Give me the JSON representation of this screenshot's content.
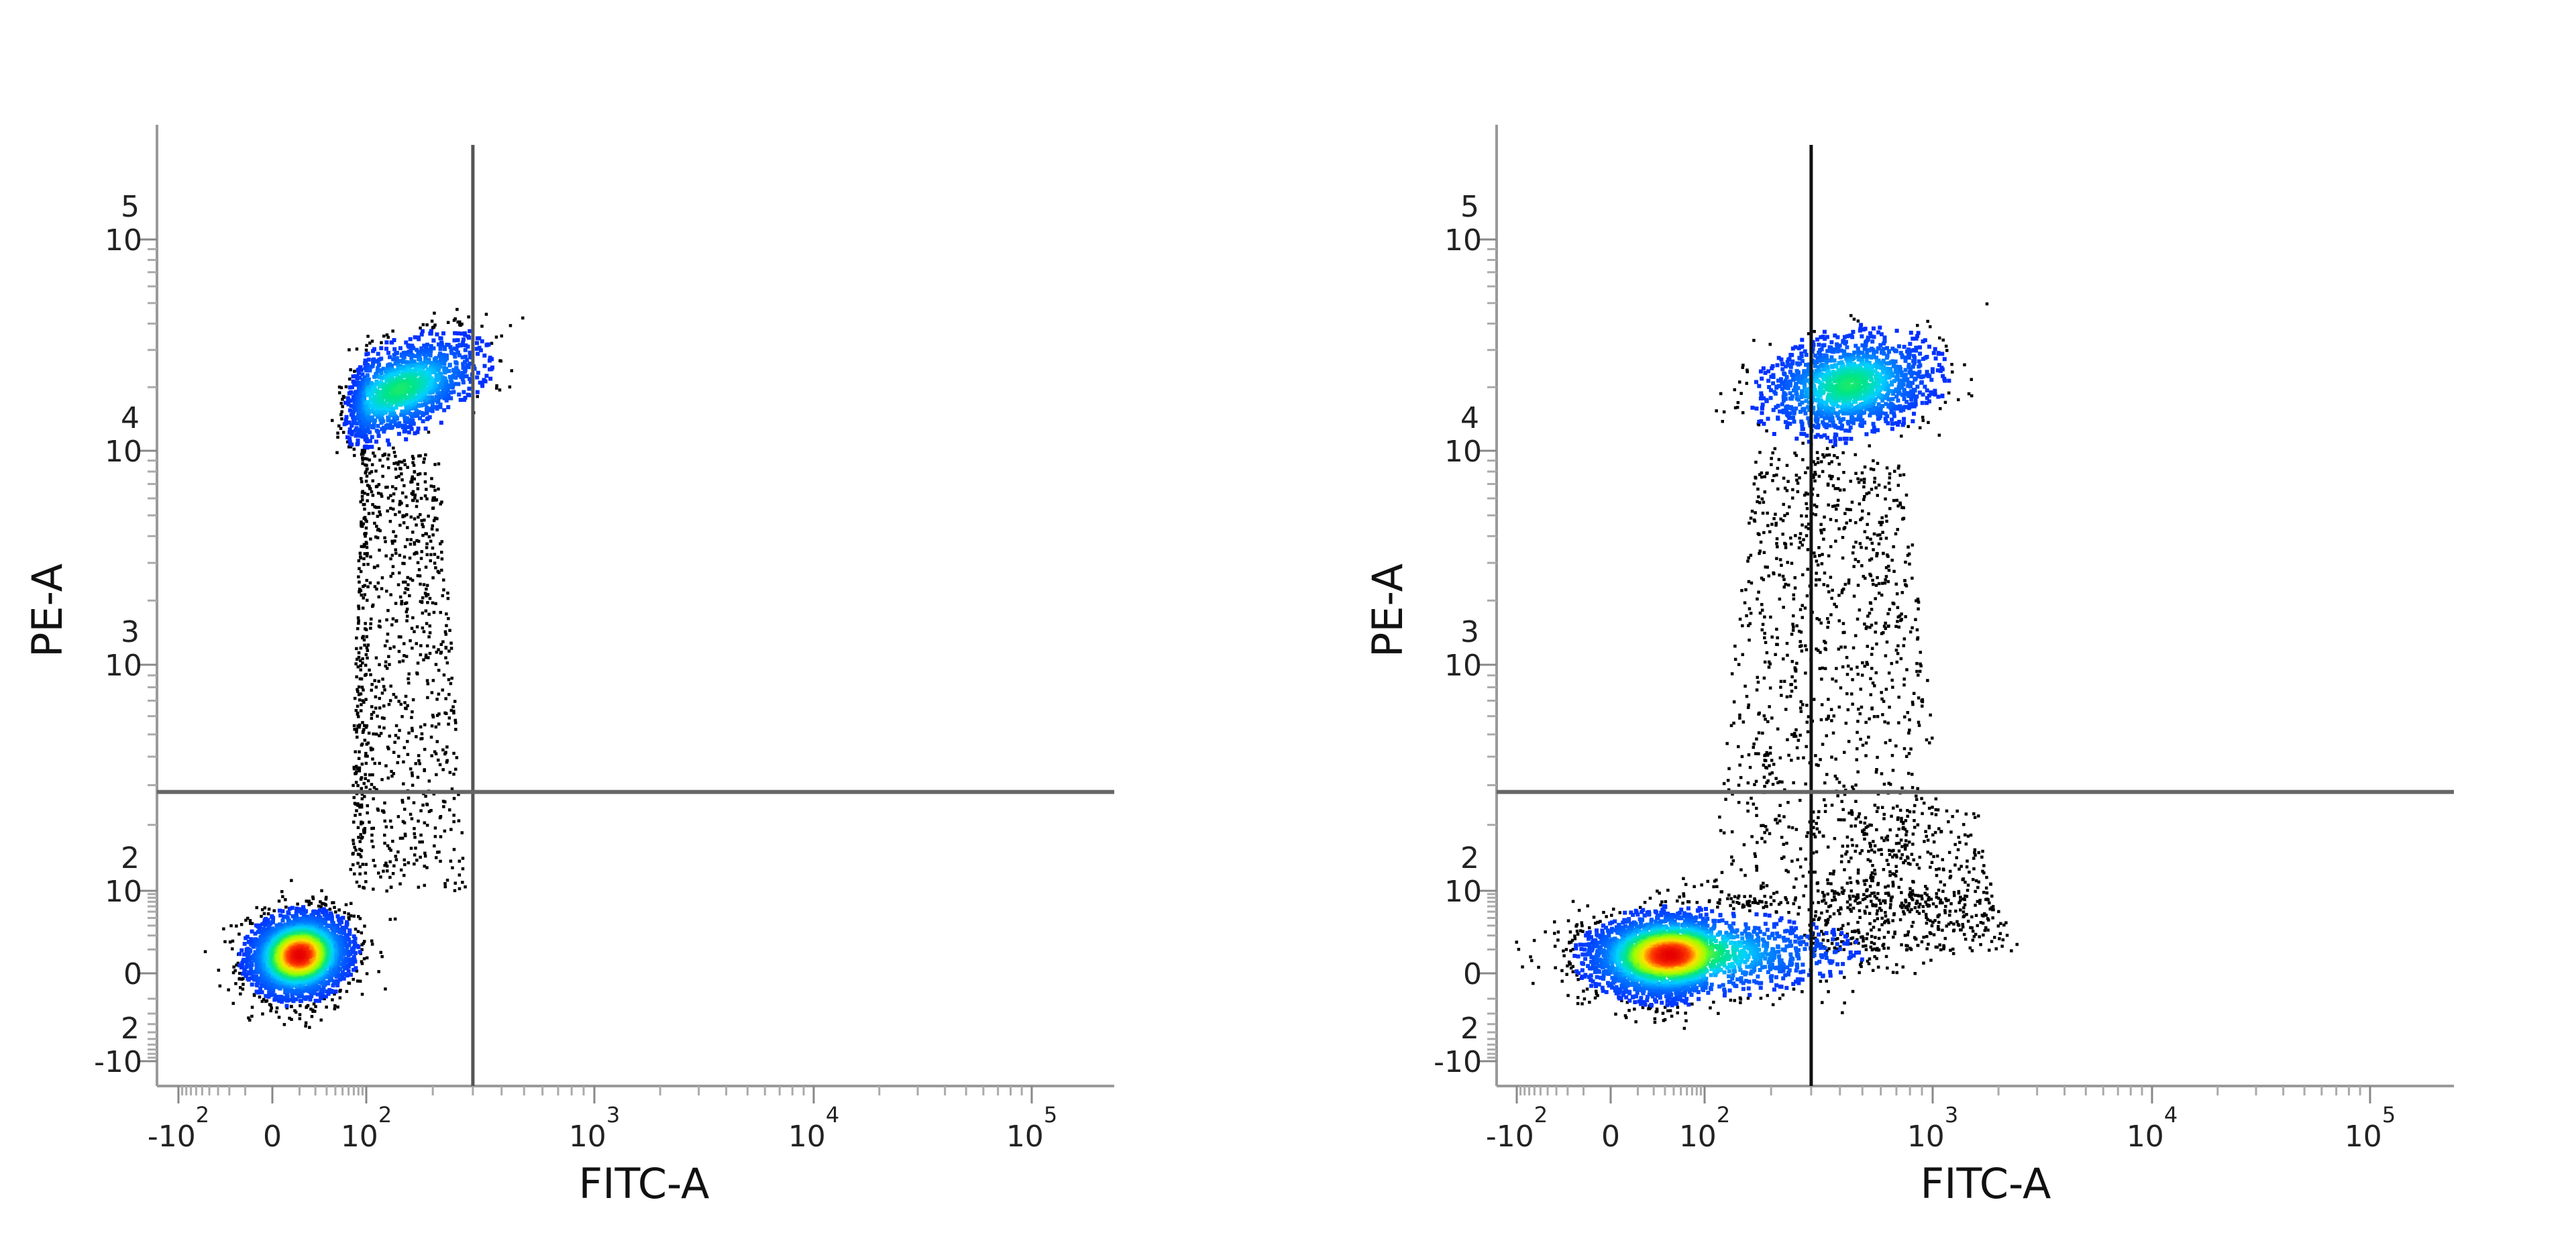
{
  "chart_data": [
    {
      "type": "scatter",
      "plot_style": "density dot plot",
      "xlabel": "FITC-A",
      "ylabel": "PE-A",
      "x_scale": "biexponential",
      "y_scale": "biexponential",
      "xlim": [
        -150,
        200000
      ],
      "ylim": [
        -150,
        200000
      ],
      "x_ticks": [
        {
          "value": -100,
          "base": "-10",
          "exp": "2"
        },
        {
          "value": 0,
          "base": "0",
          "exp": ""
        },
        {
          "value": 100,
          "base": "10",
          "exp": "2"
        },
        {
          "value": 1000,
          "base": "10",
          "exp": "3"
        },
        {
          "value": 10000,
          "base": "10",
          "exp": "4"
        },
        {
          "value": 100000,
          "base": "10",
          "exp": "5"
        }
      ],
      "y_ticks": [
        {
          "value": -100,
          "base": "-10",
          "exp": "2"
        },
        {
          "value": 0,
          "base": "0",
          "exp": ""
        },
        {
          "value": 100,
          "base": "10",
          "exp": "2"
        },
        {
          "value": 1000,
          "base": "10",
          "exp": "3"
        },
        {
          "value": 10000,
          "base": "10",
          "exp": "4"
        },
        {
          "value": 100000,
          "base": "10",
          "exp": "5"
        }
      ],
      "quadrant_gate": {
        "x": 300,
        "y": 280
      },
      "populations": [
        {
          "type": "gaussian",
          "center": [
            9,
            8
          ],
          "sd_decades": [
            0.28,
            0.26
          ],
          "corr": 0.1,
          "events": 3000,
          "peak": 1.0
        },
        {
          "type": "gaussian",
          "center": [
            140,
            20000
          ],
          "sd_decades": [
            0.17,
            0.12
          ],
          "corr": 0.5,
          "events": 1500,
          "peak": 0.6
        },
        {
          "type": "uniform",
          "x_range": [
            60,
            280
          ],
          "y_range": [
            100,
            10000
          ],
          "events": 900
        }
      ],
      "colors": {
        "sparse": "#000000",
        "low": "#0020ff",
        "mid": "#00d0ff",
        "high": "#ffe000",
        "peak": "#ff0000",
        "gate": "#555555"
      }
    },
    {
      "type": "scatter",
      "plot_style": "density dot plot",
      "xlabel": "FITC-A",
      "ylabel": "PE-A",
      "x_scale": "biexponential",
      "y_scale": "biexponential",
      "xlim": [
        -150,
        200000
      ],
      "ylim": [
        -150,
        200000
      ],
      "x_ticks": [
        {
          "value": -100,
          "base": "-10",
          "exp": "2"
        },
        {
          "value": 0,
          "base": "0",
          "exp": ""
        },
        {
          "value": 100,
          "base": "10",
          "exp": "2"
        },
        {
          "value": 1000,
          "base": "10",
          "exp": "3"
        },
        {
          "value": 10000,
          "base": "10",
          "exp": "4"
        },
        {
          "value": 100000,
          "base": "10",
          "exp": "5"
        }
      ],
      "y_ticks": [
        {
          "value": -100,
          "base": "-10",
          "exp": "2"
        },
        {
          "value": 0,
          "base": "0",
          "exp": ""
        },
        {
          "value": 100,
          "base": "10",
          "exp": "2"
        },
        {
          "value": 1000,
          "base": "10",
          "exp": "3"
        },
        {
          "value": 10000,
          "base": "10",
          "exp": "4"
        },
        {
          "value": 100000,
          "base": "10",
          "exp": "5"
        }
      ],
      "quadrant_gate": {
        "x": 300,
        "y": 280
      },
      "populations": [
        {
          "type": "gaussian",
          "center": [
            33,
            8
          ],
          "sd_decades": [
            0.45,
            0.26
          ],
          "corr": 0.05,
          "events": 3500,
          "peak": 1.0
        },
        {
          "type": "gaussian",
          "center": [
            430,
            21000
          ],
          "sd_decades": [
            0.18,
            0.12
          ],
          "corr": 0.2,
          "events": 1500,
          "peak": 0.6
        },
        {
          "type": "uniform",
          "x_range": [
            100,
            1200
          ],
          "y_range": [
            60,
            10000
          ],
          "events": 1100
        },
        {
          "type": "uniform",
          "x_range": [
            250,
            2500
          ],
          "y_range": [
            10,
            250
          ],
          "events": 500
        }
      ],
      "colors": {
        "sparse": "#000000",
        "low": "#0020ff",
        "mid": "#00d0ff",
        "high": "#ffe000",
        "peak": "#ff0000",
        "gate": "#111111"
      }
    }
  ]
}
